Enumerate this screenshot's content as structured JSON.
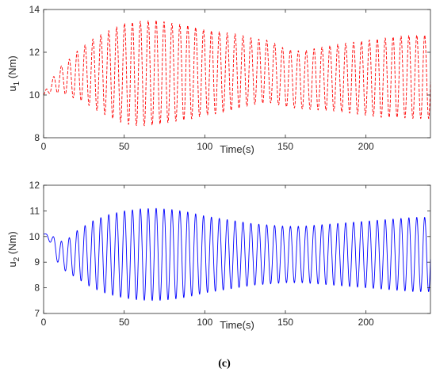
{
  "figure_label": "(c)",
  "chart_data": [
    {
      "type": "line",
      "xlabel": "Time(s)",
      "ylabel_main": "u",
      "ylabel_sub": "1",
      "ylabel_unit": " (Nm)",
      "xlim": [
        0,
        240
      ],
      "ylim": [
        8,
        14
      ],
      "xticks": [
        0,
        50,
        100,
        150,
        200
      ],
      "yticks": [
        8,
        10,
        12,
        14
      ],
      "grid": false,
      "line_style": "dashed",
      "color": "#ff0000",
      "series": [
        {
          "period_s": 4.9,
          "x": [
            0,
            2,
            5,
            8,
            10,
            15,
            20,
            25,
            30,
            40,
            50,
            60,
            70,
            80,
            90,
            100,
            110,
            120,
            130,
            140,
            150,
            160,
            170,
            180,
            190,
            200,
            210,
            220,
            230,
            240
          ],
          "center": [
            10.0,
            10.2,
            10.4,
            10.6,
            10.7,
            10.8,
            10.9,
            11.0,
            11.0,
            11.0,
            11.0,
            11.0,
            11.05,
            11.05,
            11.05,
            11.05,
            11.05,
            11.1,
            11.1,
            11.1,
            10.8,
            10.7,
            10.75,
            10.8,
            10.8,
            10.8,
            10.8,
            10.85,
            10.85,
            10.85
          ],
          "amplitude": [
            0.0,
            0.15,
            0.3,
            0.5,
            0.6,
            0.8,
            1.1,
            1.3,
            1.6,
            2.0,
            2.35,
            2.45,
            2.45,
            2.3,
            2.2,
            2.0,
            1.9,
            1.75,
            1.55,
            1.45,
            1.35,
            1.35,
            1.45,
            1.55,
            1.65,
            1.75,
            1.85,
            1.9,
            1.95,
            1.95
          ]
        }
      ]
    },
    {
      "type": "line",
      "xlabel": "Time(s)",
      "ylabel_main": "u",
      "ylabel_sub": "2",
      "ylabel_unit": " (Nm)",
      "xlim": [
        0,
        240
      ],
      "ylim": [
        7,
        12
      ],
      "xticks": [
        0,
        50,
        100,
        150,
        200
      ],
      "yticks": [
        7,
        8,
        9,
        10,
        11,
        12
      ],
      "grid": false,
      "line_style": "solid",
      "color": "#0000ff",
      "series": [
        {
          "period_s": 4.9,
          "x": [
            0,
            2,
            5,
            8,
            10,
            15,
            20,
            25,
            30,
            40,
            50,
            60,
            70,
            80,
            90,
            100,
            110,
            120,
            130,
            140,
            150,
            160,
            170,
            180,
            190,
            200,
            210,
            220,
            230,
            240
          ],
          "center": [
            10.1,
            10.05,
            9.85,
            9.5,
            9.3,
            9.25,
            9.3,
            9.3,
            9.3,
            9.3,
            9.3,
            9.3,
            9.3,
            9.3,
            9.3,
            9.3,
            9.3,
            9.3,
            9.3,
            9.3,
            9.3,
            9.3,
            9.3,
            9.3,
            9.3,
            9.3,
            9.3,
            9.3,
            9.3,
            9.3
          ],
          "amplitude": [
            0.0,
            0.05,
            0.2,
            0.4,
            0.5,
            0.65,
            0.9,
            1.1,
            1.3,
            1.55,
            1.7,
            1.78,
            1.8,
            1.75,
            1.65,
            1.5,
            1.4,
            1.3,
            1.2,
            1.15,
            1.1,
            1.1,
            1.15,
            1.2,
            1.25,
            1.3,
            1.35,
            1.4,
            1.45,
            1.45
          ]
        }
      ]
    }
  ]
}
